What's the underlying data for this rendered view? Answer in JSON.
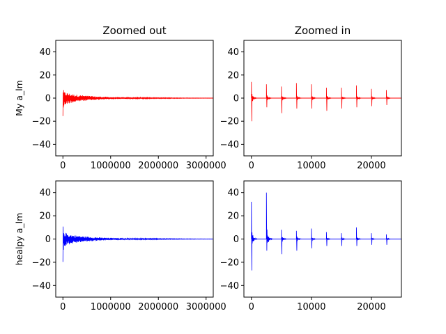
{
  "figure": {
    "background": "#ffffff"
  },
  "chart_data": [
    {
      "type": "line",
      "title": "Zoomed out",
      "xlabel": "",
      "ylabel": "My a_lm",
      "xlim": [
        -150000,
        3150000
      ],
      "ylim": [
        -50,
        50
      ],
      "xticks": [
        0,
        1000000,
        2000000,
        3000000
      ],
      "xtick_labels": [
        "0",
        "1000000",
        "2000000",
        "3000000"
      ],
      "yticks": [
        -40,
        -20,
        0,
        20,
        40
      ],
      "ytick_labels": [
        "−40",
        "−20",
        "0",
        "20",
        "40"
      ],
      "grid": false,
      "series": [
        {
          "color": "#ff0000",
          "envelope_x": [
            0,
            5000,
            20000,
            50000,
            100000,
            200000,
            300000,
            400000,
            600000,
            800000,
            1000000,
            1300000,
            1600000,
            2000000,
            2500000,
            3150000
          ],
          "envelope_upper": [
            14,
            9,
            6,
            5,
            4.5,
            3.5,
            3,
            2.5,
            1.8,
            1.3,
            1,
            0.7,
            0.5,
            0.35,
            0.2,
            0.1
          ],
          "envelope_lower": [
            -20,
            -12,
            -8,
            -6,
            -5,
            -4,
            -3.2,
            -2.6,
            -1.9,
            -1.4,
            -1,
            -0.7,
            -0.5,
            -0.35,
            -0.2,
            -0.1
          ]
        }
      ]
    },
    {
      "type": "line",
      "title": "Zoomed in",
      "xlabel": "",
      "ylabel": "",
      "xlim": [
        -1250,
        25000
      ],
      "ylim": [
        -50,
        50
      ],
      "xticks": [
        0,
        10000,
        20000
      ],
      "xtick_labels": [
        "0",
        "10000",
        "20000"
      ],
      "yticks": [
        -40,
        -20,
        0,
        20,
        40
      ],
      "ytick_labels": [
        "−40",
        "−20",
        "0",
        "20",
        "40"
      ],
      "grid": false,
      "series": [
        {
          "color": "#ff0000",
          "spike_x": [
            0,
            2500,
            5000,
            7500,
            10000,
            12500,
            15000,
            17500,
            20000,
            22500,
            25000
          ],
          "spike_max": [
            14,
            12,
            10,
            13,
            12,
            9,
            9,
            11,
            8,
            7,
            6
          ],
          "spike_min": [
            -20,
            -8,
            -13,
            -9,
            -9,
            -11,
            -9,
            -8,
            -7,
            -6,
            -5
          ]
        }
      ]
    },
    {
      "type": "line",
      "title": "",
      "xlabel": "",
      "ylabel": "healpy a_lm",
      "xlim": [
        -150000,
        3150000
      ],
      "ylim": [
        -50,
        50
      ],
      "xticks": [
        0,
        1000000,
        2000000,
        3000000
      ],
      "xtick_labels": [
        "0",
        "1000000",
        "2000000",
        "3000000"
      ],
      "yticks": [
        -40,
        -20,
        0,
        20,
        40
      ],
      "ytick_labels": [
        "−40",
        "−20",
        "0",
        "20",
        "40"
      ],
      "grid": false,
      "series": [
        {
          "color": "#0000ff",
          "envelope_x": [
            0,
            5000,
            20000,
            50000,
            100000,
            200000,
            300000,
            400000,
            600000,
            800000,
            1000000,
            1300000,
            1600000,
            2000000,
            2500000,
            3150000
          ],
          "envelope_upper": [
            40,
            11,
            7,
            5.5,
            4.5,
            3.5,
            3,
            2.5,
            1.8,
            1.3,
            1,
            0.7,
            0.5,
            0.35,
            0.2,
            0.1
          ],
          "envelope_lower": [
            -27,
            -12,
            -8,
            -6,
            -5,
            -4,
            -3.2,
            -2.6,
            -1.9,
            -1.4,
            -1,
            -0.7,
            -0.5,
            -0.35,
            -0.2,
            -0.1
          ]
        }
      ]
    },
    {
      "type": "line",
      "title": "",
      "xlabel": "",
      "ylabel": "",
      "xlim": [
        -1250,
        25000
      ],
      "ylim": [
        -50,
        50
      ],
      "xticks": [
        0,
        10000,
        20000
      ],
      "xtick_labels": [
        "0",
        "10000",
        "20000"
      ],
      "yticks": [
        -40,
        -20,
        0,
        20,
        40
      ],
      "ytick_labels": [
        "−40",
        "−20",
        "0",
        "20",
        "40"
      ],
      "grid": false,
      "series": [
        {
          "color": "#0000ff",
          "spike_x": [
            0,
            2500,
            5000,
            7500,
            10000,
            12500,
            15000,
            17500,
            20000,
            22500,
            25000
          ],
          "spike_max": [
            32,
            40,
            8,
            7,
            9,
            6,
            5,
            10,
            5,
            4,
            5
          ],
          "spike_min": [
            -27,
            -10,
            -13,
            -10,
            -8,
            -6,
            -6,
            -6,
            -5,
            -5,
            -6
          ]
        }
      ]
    }
  ]
}
